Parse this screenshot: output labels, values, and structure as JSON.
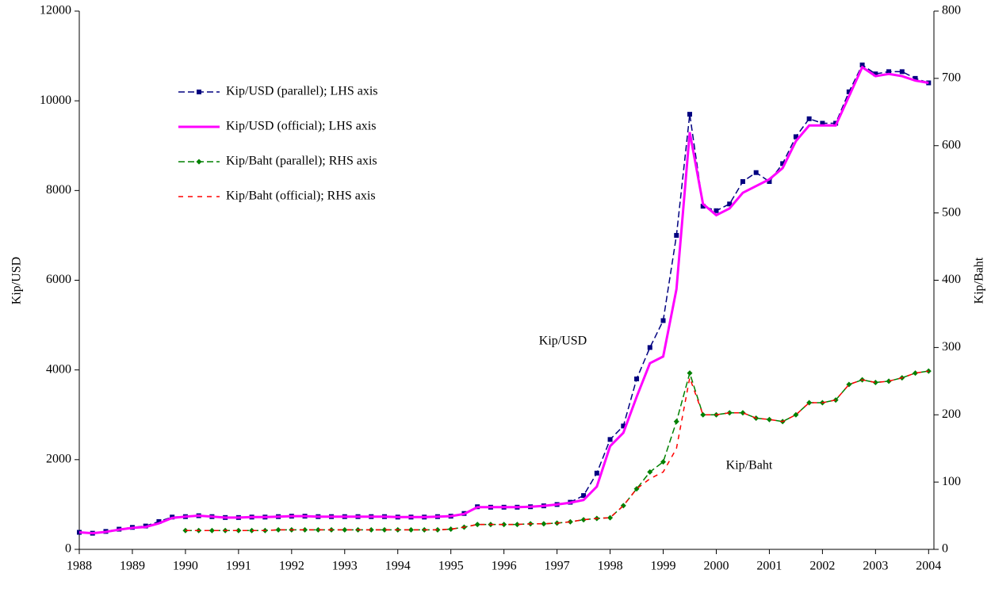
{
  "chart_data": {
    "type": "line",
    "y_label": "Kip/USD",
    "y2_label": "Kip/Baht",
    "annotations": [
      "Kip/USD",
      "Kip/Baht"
    ],
    "legend": "upper left",
    "x": [
      1988,
      1988.25,
      1988.5,
      1988.75,
      1989,
      1989.25,
      1989.5,
      1989.75,
      1990,
      1990.25,
      1990.5,
      1990.75,
      1991,
      1991.25,
      1991.5,
      1991.75,
      1992,
      1992.25,
      1992.5,
      1992.75,
      1993,
      1993.25,
      1993.5,
      1993.75,
      1994,
      1994.25,
      1994.5,
      1994.75,
      1995,
      1995.25,
      1995.5,
      1995.75,
      1996,
      1996.25,
      1996.5,
      1996.75,
      1997,
      1997.25,
      1997.5,
      1997.75,
      1998,
      1998.25,
      1998.5,
      1998.75,
      1999,
      1999.25,
      1999.5,
      1999.75,
      2000,
      2000.25,
      2000.5,
      2000.75,
      2001,
      2001.25,
      2001.5,
      2001.75,
      2002,
      2002.25,
      2002.5,
      2002.75,
      2003,
      2003.25,
      2003.5,
      2003.75,
      2004
    ],
    "xlim": [
      1988,
      2004.1
    ],
    "xticks": [
      1988,
      1989,
      1990,
      1991,
      1992,
      1993,
      1994,
      1995,
      1996,
      1997,
      1998,
      1999,
      2000,
      2001,
      2002,
      2003,
      2004
    ],
    "ylim": [
      0,
      12000
    ],
    "yticks": [
      0,
      2000,
      4000,
      6000,
      8000,
      10000,
      12000
    ],
    "y2lim": [
      0,
      800
    ],
    "y2ticks": [
      0,
      100,
      200,
      300,
      400,
      500,
      600,
      700,
      800
    ],
    "series": [
      {
        "name": "Kip/USD (parallel); LHS axis",
        "color": "#000080",
        "dash": true,
        "marker": "square",
        "values": [
          380,
          360,
          400,
          450,
          490,
          520,
          620,
          720,
          730,
          750,
          730,
          710,
          710,
          720,
          720,
          730,
          740,
          740,
          730,
          730,
          730,
          730,
          730,
          730,
          720,
          720,
          720,
          730,
          740,
          800,
          950,
          940,
          940,
          940,
          950,
          970,
          1000,
          1050,
          1200,
          1700,
          2450,
          2750,
          3800,
          4500,
          5100,
          7000,
          9700,
          7650,
          7550,
          7700,
          8200,
          8400,
          8200,
          8600,
          9200,
          9600,
          9500,
          9500,
          10200,
          10800,
          10600,
          10650,
          10650,
          10500,
          10400
        ]
      },
      {
        "name": "Kip/USD (official); LHS axis",
        "color": "#ff00ff",
        "dash": false,
        "marker": null,
        "values": [
          380,
          360,
          390,
          440,
          480,
          500,
          580,
          700,
          730,
          750,
          730,
          710,
          710,
          720,
          720,
          730,
          740,
          740,
          730,
          730,
          730,
          730,
          730,
          730,
          720,
          720,
          720,
          730,
          740,
          790,
          940,
          940,
          940,
          940,
          950,
          970,
          1000,
          1040,
          1100,
          1400,
          2300,
          2600,
          3400,
          4150,
          4300,
          5800,
          9300,
          7700,
          7450,
          7600,
          7950,
          8100,
          8250,
          8500,
          9100,
          9450,
          9450,
          9450,
          10100,
          10750,
          10550,
          10600,
          10550,
          10450,
          10400
        ]
      },
      {
        "name": "Kip/Baht (parallel); RHS axis",
        "color": "#008000",
        "dash": true,
        "marker": "diamond",
        "axis": "y2",
        "values": [
          null,
          null,
          null,
          null,
          null,
          null,
          null,
          null,
          28,
          28,
          28,
          28,
          28,
          28,
          28,
          29,
          29,
          29,
          29,
          29,
          29,
          29,
          29,
          29,
          29,
          29,
          29,
          29,
          30,
          33,
          37,
          37,
          37,
          37,
          38,
          38,
          39,
          41,
          44,
          46,
          47,
          65,
          90,
          115,
          130,
          190,
          262,
          200,
          200,
          203,
          203,
          195,
          193,
          190,
          200,
          218,
          218,
          222,
          245,
          252,
          248,
          250,
          255,
          262,
          265
        ]
      },
      {
        "name": "Kip/Baht (official); RHS axis",
        "color": "#ff0000",
        "dash": true,
        "marker": null,
        "axis": "y2",
        "values": [
          null,
          null,
          null,
          null,
          null,
          null,
          null,
          null,
          28,
          28,
          28,
          28,
          28,
          28,
          28,
          29,
          29,
          29,
          29,
          29,
          29,
          29,
          29,
          29,
          29,
          29,
          29,
          29,
          30,
          33,
          37,
          37,
          37,
          37,
          38,
          38,
          39,
          41,
          44,
          46,
          47,
          65,
          90,
          105,
          115,
          150,
          255,
          200,
          200,
          203,
          203,
          195,
          193,
          190,
          200,
          218,
          218,
          222,
          245,
          252,
          248,
          250,
          255,
          262,
          265
        ]
      }
    ]
  }
}
